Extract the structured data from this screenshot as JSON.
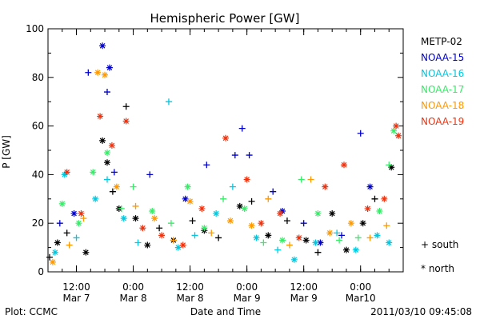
{
  "chart_data": {
    "type": "scatter",
    "title": "Hemispheric Power [GW]",
    "ylabel": "P [GW]",
    "xlabel": "Date and Time",
    "ylim": [
      0,
      100
    ],
    "xlim": [
      "2011-03-07T06:00",
      "2011-03-10T09:00"
    ],
    "y_ticks": [
      0,
      20,
      40,
      60,
      80,
      100
    ],
    "x_ticks": [
      {
        "t": "2011-03-07T12:00",
        "label_top": "12:00",
        "label_bottom": "Mar 7"
      },
      {
        "t": "2011-03-08T00:00",
        "label_top": "0:00",
        "label_bottom": "Mar 8"
      },
      {
        "t": "2011-03-08T12:00",
        "label_top": "12:00",
        "label_bottom": "Mar 8"
      },
      {
        "t": "2011-03-09T00:00",
        "label_top": "0:00",
        "label_bottom": "Mar 9"
      },
      {
        "t": "2011-03-09T12:00",
        "label_top": "12:00",
        "label_bottom": "Mar 9"
      },
      {
        "t": "2011-03-10T00:00",
        "label_top": "0:00",
        "label_bottom": "Mar10"
      }
    ],
    "symbol_legend": [
      {
        "symbol": "+",
        "label": "south"
      },
      {
        "symbol": "*",
        "label": "north"
      }
    ],
    "series": [
      {
        "name": "METP-02",
        "color": "#000000",
        "points": [
          [
            "2011-03-07T06:20",
            6,
            "+"
          ],
          [
            "2011-03-07T08:00",
            12,
            "*"
          ],
          [
            "2011-03-07T10:00",
            16,
            "+"
          ],
          [
            "2011-03-07T14:00",
            8,
            "*"
          ],
          [
            "2011-03-07T17:30",
            54,
            "*"
          ],
          [
            "2011-03-07T18:30",
            45,
            "*"
          ],
          [
            "2011-03-07T19:40",
            33,
            "+"
          ],
          [
            "2011-03-07T21:00",
            26,
            "*"
          ],
          [
            "2011-03-07T22:30",
            68,
            "+"
          ],
          [
            "2011-03-08T00:30",
            22,
            "*"
          ],
          [
            "2011-03-08T03:00",
            11,
            "*"
          ],
          [
            "2011-03-08T05:30",
            18,
            "+"
          ],
          [
            "2011-03-08T08:30",
            13,
            "*"
          ],
          [
            "2011-03-08T12:30",
            21,
            "+"
          ],
          [
            "2011-03-08T15:00",
            17,
            "*"
          ],
          [
            "2011-03-08T18:00",
            14,
            "+"
          ],
          [
            "2011-03-08T22:30",
            27,
            "*"
          ],
          [
            "2011-03-09T01:00",
            29,
            "+"
          ],
          [
            "2011-03-09T04:30",
            15,
            "*"
          ],
          [
            "2011-03-09T08:30",
            21,
            "+"
          ],
          [
            "2011-03-09T12:30",
            13,
            "*"
          ],
          [
            "2011-03-09T15:00",
            8,
            "+"
          ],
          [
            "2011-03-09T18:00",
            24,
            "*"
          ],
          [
            "2011-03-09T21:00",
            9,
            "*"
          ],
          [
            "2011-03-10T00:30",
            20,
            "*"
          ],
          [
            "2011-03-10T03:00",
            30,
            "+"
          ],
          [
            "2011-03-10T06:30",
            43,
            "*"
          ]
        ]
      },
      {
        "name": "NOAA-15",
        "color": "#0000cc",
        "points": [
          [
            "2011-03-07T08:30",
            20,
            "+"
          ],
          [
            "2011-03-07T11:30",
            24,
            "*"
          ],
          [
            "2011-03-07T14:30",
            82,
            "+"
          ],
          [
            "2011-03-07T17:30",
            93,
            "*"
          ],
          [
            "2011-03-07T18:30",
            74,
            "+"
          ],
          [
            "2011-03-07T19:00",
            84,
            "*"
          ],
          [
            "2011-03-07T20:00",
            41,
            "+"
          ],
          [
            "2011-03-08T03:30",
            40,
            "+"
          ],
          [
            "2011-03-08T11:00",
            30,
            "*"
          ],
          [
            "2011-03-08T15:30",
            44,
            "+"
          ],
          [
            "2011-03-08T21:30",
            48,
            "+"
          ],
          [
            "2011-03-08T23:00",
            59,
            "+"
          ],
          [
            "2011-03-09T00:30",
            48,
            "+"
          ],
          [
            "2011-03-09T05:30",
            33,
            "+"
          ],
          [
            "2011-03-09T07:30",
            25,
            "*"
          ],
          [
            "2011-03-09T12:00",
            20,
            "+"
          ],
          [
            "2011-03-09T15:30",
            12,
            "*"
          ],
          [
            "2011-03-09T20:00",
            15,
            "+"
          ],
          [
            "2011-03-10T00:00",
            57,
            "+"
          ],
          [
            "2011-03-10T02:00",
            35,
            "*"
          ]
        ]
      },
      {
        "name": "NOAA-16",
        "color": "#00c8e0",
        "points": [
          [
            "2011-03-07T07:30",
            8,
            "*"
          ],
          [
            "2011-03-07T09:30",
            40,
            "*"
          ],
          [
            "2011-03-07T12:00",
            14,
            "+"
          ],
          [
            "2011-03-07T16:00",
            30,
            "*"
          ],
          [
            "2011-03-07T18:30",
            38,
            "+"
          ],
          [
            "2011-03-07T22:00",
            22,
            "*"
          ],
          [
            "2011-03-08T01:00",
            12,
            "+"
          ],
          [
            "2011-03-08T07:30",
            70,
            "+"
          ],
          [
            "2011-03-08T09:30",
            10,
            "*"
          ],
          [
            "2011-03-08T13:00",
            15,
            "+"
          ],
          [
            "2011-03-08T17:30",
            24,
            "*"
          ],
          [
            "2011-03-08T21:00",
            35,
            "+"
          ],
          [
            "2011-03-09T02:00",
            14,
            "*"
          ],
          [
            "2011-03-09T06:30",
            9,
            "+"
          ],
          [
            "2011-03-09T10:00",
            5,
            "*"
          ],
          [
            "2011-03-09T14:30",
            12,
            "*"
          ],
          [
            "2011-03-09T19:00",
            16,
            "+"
          ],
          [
            "2011-03-09T23:00",
            9,
            "*"
          ],
          [
            "2011-03-10T03:30",
            15,
            "*"
          ],
          [
            "2011-03-10T06:00",
            12,
            "*"
          ]
        ]
      },
      {
        "name": "NOAA-17",
        "color": "#33ee66",
        "points": [
          [
            "2011-03-07T09:00",
            28,
            "*"
          ],
          [
            "2011-03-07T12:30",
            20,
            "*"
          ],
          [
            "2011-03-07T15:30",
            41,
            "*"
          ],
          [
            "2011-03-07T18:30",
            49,
            "*"
          ],
          [
            "2011-03-07T21:30",
            26,
            "+"
          ],
          [
            "2011-03-08T00:00",
            35,
            "+"
          ],
          [
            "2011-03-08T04:00",
            25,
            "*"
          ],
          [
            "2011-03-08T08:00",
            20,
            "+"
          ],
          [
            "2011-03-08T11:30",
            35,
            "*"
          ],
          [
            "2011-03-08T15:00",
            18,
            "*"
          ],
          [
            "2011-03-08T19:00",
            30,
            "+"
          ],
          [
            "2011-03-08T23:30",
            26,
            "*"
          ],
          [
            "2011-03-09T03:30",
            12,
            "+"
          ],
          [
            "2011-03-09T07:30",
            13,
            "*"
          ],
          [
            "2011-03-09T11:30",
            38,
            "+"
          ],
          [
            "2011-03-09T15:00",
            24,
            "*"
          ],
          [
            "2011-03-09T19:30",
            13,
            "+"
          ],
          [
            "2011-03-09T23:30",
            14,
            "+"
          ],
          [
            "2011-03-10T04:00",
            25,
            "*"
          ],
          [
            "2011-03-10T06:00",
            44,
            "+"
          ],
          [
            "2011-03-10T07:00",
            58,
            "*"
          ]
        ]
      },
      {
        "name": "NOAA-18",
        "color": "#ff9900",
        "points": [
          [
            "2011-03-07T07:00",
            4,
            "*"
          ],
          [
            "2011-03-07T10:30",
            11,
            "+"
          ],
          [
            "2011-03-07T13:30",
            22,
            "+"
          ],
          [
            "2011-03-07T16:30",
            82,
            "*"
          ],
          [
            "2011-03-07T18:00",
            81,
            "*"
          ],
          [
            "2011-03-07T20:30",
            35,
            "*"
          ],
          [
            "2011-03-08T00:30",
            27,
            "+"
          ],
          [
            "2011-03-08T04:30",
            22,
            "*"
          ],
          [
            "2011-03-08T08:30",
            13,
            "+"
          ],
          [
            "2011-03-08T12:00",
            29,
            "*"
          ],
          [
            "2011-03-08T16:30",
            16,
            "+"
          ],
          [
            "2011-03-08T20:30",
            21,
            "*"
          ],
          [
            "2011-03-09T01:00",
            19,
            "*"
          ],
          [
            "2011-03-09T04:30",
            30,
            "+"
          ],
          [
            "2011-03-09T09:00",
            11,
            "+"
          ],
          [
            "2011-03-09T13:30",
            38,
            "+"
          ],
          [
            "2011-03-09T17:30",
            16,
            "*"
          ],
          [
            "2011-03-09T22:00",
            20,
            "*"
          ],
          [
            "2011-03-10T02:00",
            14,
            "+"
          ],
          [
            "2011-03-10T05:30",
            19,
            "+"
          ]
        ]
      },
      {
        "name": "NOAA-19",
        "color": "#ee3311",
        "points": [
          [
            "2011-03-07T10:00",
            41,
            "*"
          ],
          [
            "2011-03-07T13:00",
            24,
            "*"
          ],
          [
            "2011-03-07T17:00",
            64,
            "*"
          ],
          [
            "2011-03-07T19:30",
            52,
            "*"
          ],
          [
            "2011-03-07T22:30",
            62,
            "*"
          ],
          [
            "2011-03-08T02:00",
            18,
            "*"
          ],
          [
            "2011-03-08T06:00",
            15,
            "*"
          ],
          [
            "2011-03-08T10:30",
            11,
            "*"
          ],
          [
            "2011-03-08T14:30",
            26,
            "*"
          ],
          [
            "2011-03-08T19:30",
            55,
            "*"
          ],
          [
            "2011-03-09T00:00",
            38,
            "*"
          ],
          [
            "2011-03-09T03:00",
            20,
            "*"
          ],
          [
            "2011-03-09T07:00",
            24,
            "*"
          ],
          [
            "2011-03-09T11:00",
            14,
            "*"
          ],
          [
            "2011-03-09T16:30",
            35,
            "*"
          ],
          [
            "2011-03-09T20:30",
            44,
            "*"
          ],
          [
            "2011-03-10T01:30",
            26,
            "*"
          ],
          [
            "2011-03-10T05:00",
            30,
            "*"
          ],
          [
            "2011-03-10T07:30",
            60,
            "*"
          ],
          [
            "2011-03-10T08:00",
            56,
            "*"
          ]
        ]
      }
    ]
  },
  "footer": {
    "left": "Plot: CCMC",
    "center": "Date and Time",
    "right": "2011/03/10 09:45:08"
  }
}
